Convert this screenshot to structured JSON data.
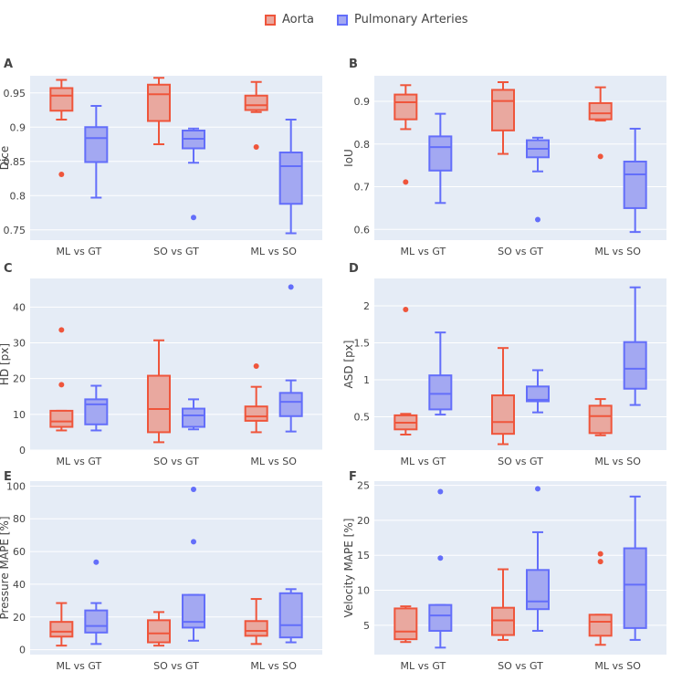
{
  "legend": {
    "aorta": "Aorta",
    "pulmonary": "Pulmonary Arteries"
  },
  "colors": {
    "aorta_line": "#EF553B",
    "aorta_fill": "#E9A89F",
    "pulmonary_line": "#636EFA",
    "pulmonary_fill": "#A3A8F2",
    "plot_bg": "#E5ECF6",
    "grid": "#FFFFFF",
    "text": "#444444"
  },
  "chart_data": [
    {
      "type": "box",
      "panel": "A",
      "ylabel": "Dice",
      "categories": [
        "ML vs GT",
        "SO vs GT",
        "ML vs SO"
      ],
      "ylim": [
        0.735,
        0.975
      ],
      "yticks": [
        0.75,
        0.8,
        0.85,
        0.9,
        0.95
      ],
      "yticklabels": [
        "0.75",
        "0.8",
        "0.85",
        "0.9",
        "0.95"
      ],
      "series": [
        {
          "name": "Aorta",
          "boxes": [
            {
              "lower_fence": 0.911,
              "q1": 0.924,
              "median": 0.946,
              "q3": 0.957,
              "upper_fence": 0.969,
              "outliers": [
                0.831
              ]
            },
            {
              "lower_fence": 0.875,
              "q1": 0.909,
              "median": 0.948,
              "q3": 0.962,
              "upper_fence": 0.972,
              "outliers": []
            },
            {
              "lower_fence": 0.922,
              "q1": 0.925,
              "median": 0.932,
              "q3": 0.946,
              "upper_fence": 0.966,
              "outliers": [
                0.871
              ]
            }
          ]
        },
        {
          "name": "Pulmonary Arteries",
          "boxes": [
            {
              "lower_fence": 0.797,
              "q1": 0.849,
              "median": 0.884,
              "q3": 0.9,
              "upper_fence": 0.931,
              "outliers": []
            },
            {
              "lower_fence": 0.848,
              "q1": 0.869,
              "median": 0.883,
              "q3": 0.895,
              "upper_fence": 0.898,
              "outliers": [
                0.768
              ]
            },
            {
              "lower_fence": 0.745,
              "q1": 0.788,
              "median": 0.843,
              "q3": 0.863,
              "upper_fence": 0.911,
              "outliers": []
            }
          ]
        }
      ]
    },
    {
      "type": "box",
      "panel": "B",
      "ylabel": "IoU",
      "categories": [
        "ML vs GT",
        "SO vs GT",
        "ML vs SO"
      ],
      "ylim": [
        0.575,
        0.96
      ],
      "yticks": [
        0.6,
        0.7,
        0.8,
        0.9
      ],
      "yticklabels": [
        "0.6",
        "0.7",
        "0.8",
        "0.9"
      ],
      "series": [
        {
          "name": "Aorta",
          "boxes": [
            {
              "lower_fence": 0.835,
              "q1": 0.858,
              "median": 0.898,
              "q3": 0.916,
              "upper_fence": 0.938,
              "outliers": [
                0.711
              ]
            },
            {
              "lower_fence": 0.777,
              "q1": 0.832,
              "median": 0.901,
              "q3": 0.927,
              "upper_fence": 0.945,
              "outliers": []
            },
            {
              "lower_fence": 0.855,
              "q1": 0.858,
              "median": 0.872,
              "q3": 0.896,
              "upper_fence": 0.933,
              "outliers": [
                0.771
              ]
            }
          ]
        },
        {
          "name": "Pulmonary Arteries",
          "boxes": [
            {
              "lower_fence": 0.662,
              "q1": 0.738,
              "median": 0.793,
              "q3": 0.818,
              "upper_fence": 0.871,
              "outliers": []
            },
            {
              "lower_fence": 0.736,
              "q1": 0.769,
              "median": 0.789,
              "q3": 0.809,
              "upper_fence": 0.815,
              "outliers": [
                0.623
              ]
            },
            {
              "lower_fence": 0.594,
              "q1": 0.65,
              "median": 0.729,
              "q3": 0.759,
              "upper_fence": 0.836,
              "outliers": []
            }
          ]
        }
      ]
    },
    {
      "type": "box",
      "panel": "C",
      "ylabel": "HD [px]",
      "categories": [
        "ML vs GT",
        "SO vs GT",
        "ML vs SO"
      ],
      "ylim": [
        0,
        48
      ],
      "yticks": [
        0,
        10,
        20,
        30,
        40
      ],
      "yticklabels": [
        "0",
        "10",
        "20",
        "30",
        "40"
      ],
      "series": [
        {
          "name": "Aorta",
          "boxes": [
            {
              "lower_fence": 5.5,
              "q1": 6.5,
              "median": 8.0,
              "q3": 11.0,
              "upper_fence": 11.0,
              "outliers": [
                18.3,
                33.6
              ]
            },
            {
              "lower_fence": 2.2,
              "q1": 5.0,
              "median": 11.5,
              "q3": 20.8,
              "upper_fence": 30.7,
              "outliers": []
            },
            {
              "lower_fence": 5.0,
              "q1": 8.2,
              "median": 9.4,
              "q3": 12.2,
              "upper_fence": 17.7,
              "outliers": [
                23.5
              ]
            }
          ]
        },
        {
          "name": "Pulmonary Arteries",
          "boxes": [
            {
              "lower_fence": 5.5,
              "q1": 7.2,
              "median": 12.8,
              "q3": 14.2,
              "upper_fence": 18.0,
              "outliers": []
            },
            {
              "lower_fence": 5.8,
              "q1": 6.5,
              "median": 9.7,
              "q3": 11.6,
              "upper_fence": 14.2,
              "outliers": []
            },
            {
              "lower_fence": 5.2,
              "q1": 9.5,
              "median": 13.5,
              "q3": 16.0,
              "upper_fence": 19.5,
              "outliers": [
                45.6
              ]
            }
          ]
        }
      ]
    },
    {
      "type": "box",
      "panel": "D",
      "ylabel": "ASD [px]",
      "categories": [
        "ML vs GT",
        "SO vs GT",
        "ML vs SO"
      ],
      "ylim": [
        0.05,
        2.37
      ],
      "yticks": [
        0.5,
        1,
        1.5,
        2
      ],
      "yticklabels": [
        "0.5",
        "1",
        "1.5",
        "2"
      ],
      "series": [
        {
          "name": "Aorta",
          "boxes": [
            {
              "lower_fence": 0.26,
              "q1": 0.33,
              "median": 0.42,
              "q3": 0.52,
              "upper_fence": 0.54,
              "outliers": [
                1.95
              ]
            },
            {
              "lower_fence": 0.13,
              "q1": 0.27,
              "median": 0.43,
              "q3": 0.79,
              "upper_fence": 1.43,
              "outliers": []
            },
            {
              "lower_fence": 0.25,
              "q1": 0.28,
              "median": 0.51,
              "q3": 0.65,
              "upper_fence": 0.74,
              "outliers": []
            }
          ]
        },
        {
          "name": "Pulmonary Arteries",
          "boxes": [
            {
              "lower_fence": 0.53,
              "q1": 0.6,
              "median": 0.81,
              "q3": 1.06,
              "upper_fence": 1.64,
              "outliers": []
            },
            {
              "lower_fence": 0.56,
              "q1": 0.71,
              "median": 0.73,
              "q3": 0.91,
              "upper_fence": 1.13,
              "outliers": []
            },
            {
              "lower_fence": 0.66,
              "q1": 0.88,
              "median": 1.15,
              "q3": 1.51,
              "upper_fence": 2.25,
              "outliers": []
            }
          ]
        }
      ]
    },
    {
      "type": "box",
      "panel": "E",
      "ylabel": "Pressure MAPE [%]",
      "categories": [
        "ML vs GT",
        "SO vs GT",
        "ML vs SO"
      ],
      "ylim": [
        -3,
        103
      ],
      "yticks": [
        0,
        20,
        40,
        60,
        80,
        100
      ],
      "yticklabels": [
        "0",
        "20",
        "40",
        "60",
        "80",
        "100"
      ],
      "series": [
        {
          "name": "Aorta",
          "boxes": [
            {
              "lower_fence": 2.5,
              "q1": 8.0,
              "median": 11.0,
              "q3": 17.0,
              "upper_fence": 28.5,
              "outliers": []
            },
            {
              "lower_fence": 2.5,
              "q1": 4.5,
              "median": 10.0,
              "q3": 18.0,
              "upper_fence": 23.0,
              "outliers": []
            },
            {
              "lower_fence": 3.5,
              "q1": 8.5,
              "median": 11.5,
              "q3": 17.5,
              "upper_fence": 31.0,
              "outliers": []
            }
          ]
        },
        {
          "name": "Pulmonary Arteries",
          "boxes": [
            {
              "lower_fence": 3.5,
              "q1": 10.5,
              "median": 14.5,
              "q3": 24.0,
              "upper_fence": 28.5,
              "outliers": [
                53.5
              ]
            },
            {
              "lower_fence": 5.5,
              "q1": 13.5,
              "median": 17.0,
              "q3": 33.5,
              "upper_fence": 33.5,
              "outliers": [
                66.0,
                98.0
              ]
            },
            {
              "lower_fence": 4.5,
              "q1": 7.5,
              "median": 15.0,
              "q3": 34.5,
              "upper_fence": 37.0,
              "outliers": []
            }
          ]
        }
      ]
    },
    {
      "type": "box",
      "panel": "F",
      "ylabel": "Velocity MAPE [%]",
      "categories": [
        "ML vs GT",
        "SO vs GT",
        "ML vs SO"
      ],
      "ylim": [
        0.8,
        25.6
      ],
      "yticks": [
        5,
        10,
        15,
        20,
        25
      ],
      "yticklabels": [
        "5",
        "10",
        "15",
        "20",
        "25"
      ],
      "series": [
        {
          "name": "Aorta",
          "boxes": [
            {
              "lower_fence": 2.6,
              "q1": 3.0,
              "median": 4.1,
              "q3": 7.4,
              "upper_fence": 7.7,
              "outliers": []
            },
            {
              "lower_fence": 2.9,
              "q1": 3.6,
              "median": 5.7,
              "q3": 7.5,
              "upper_fence": 13.0,
              "outliers": []
            },
            {
              "lower_fence": 2.2,
              "q1": 3.5,
              "median": 5.5,
              "q3": 6.5,
              "upper_fence": 6.5,
              "outliers": [
                14.1,
                15.2
              ]
            }
          ]
        },
        {
          "name": "Pulmonary Arteries",
          "boxes": [
            {
              "lower_fence": 1.8,
              "q1": 4.2,
              "median": 6.4,
              "q3": 7.9,
              "upper_fence": 7.9,
              "outliers": [
                14.6,
                24.1
              ]
            },
            {
              "lower_fence": 4.2,
              "q1": 7.3,
              "median": 8.4,
              "q3": 12.9,
              "upper_fence": 18.3,
              "outliers": [
                24.5
              ]
            },
            {
              "lower_fence": 2.9,
              "q1": 4.6,
              "median": 10.8,
              "q3": 16.0,
              "upper_fence": 23.4,
              "outliers": []
            }
          ]
        }
      ]
    }
  ]
}
